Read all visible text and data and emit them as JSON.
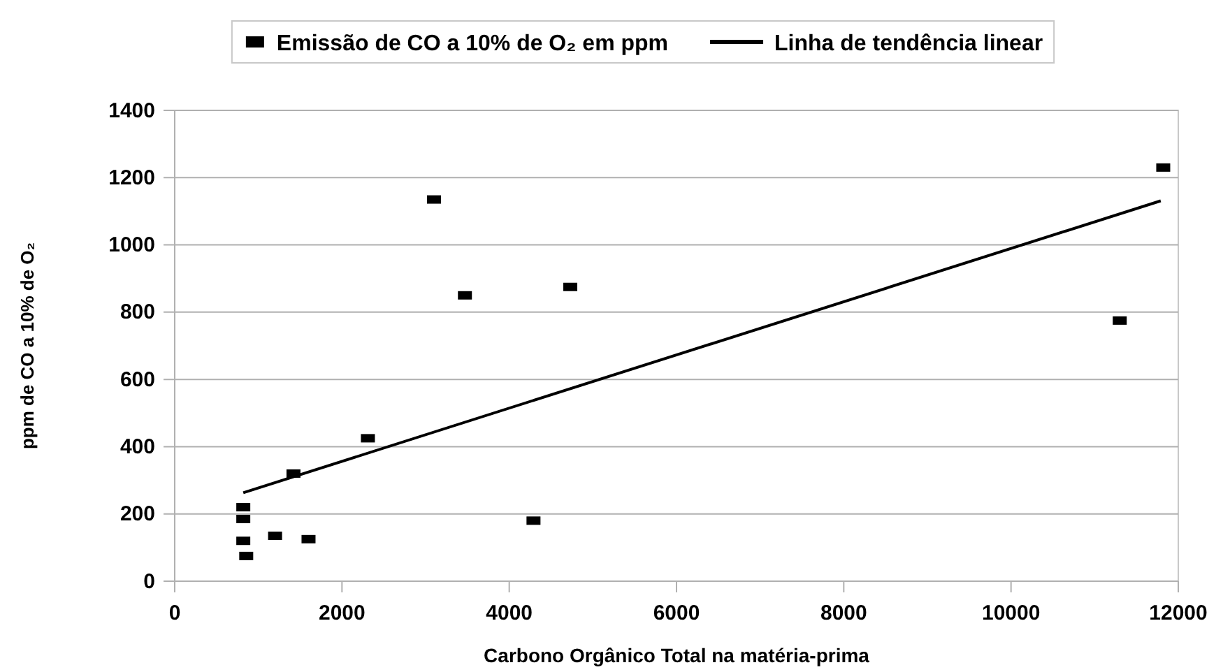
{
  "chart_data": {
    "type": "scatter",
    "xlabel": "Carbono Orgânico Total na matéria-prima",
    "ylabel": "ppm de  CO a 10% de O₂",
    "xlim": [
      0,
      12000
    ],
    "xticks": [
      0,
      2000,
      4000,
      6000,
      8000,
      10000,
      12000
    ],
    "ylim": [
      0,
      1400
    ],
    "yticks": [
      0,
      200,
      400,
      600,
      800,
      1000,
      1200,
      1400
    ],
    "grid": "y",
    "legend": "top",
    "marker": "square",
    "series": [
      {
        "name": "Emissão de CO a 10% de O₂ em ppm",
        "color": "#000000",
        "x": [
          820,
          820,
          820,
          855,
          1200,
          1600,
          1420,
          2310,
          3100,
          3470,
          4290,
          4730,
          11820,
          11300
        ],
        "values": [
          220,
          185,
          120,
          75,
          135,
          125,
          320,
          425,
          1135,
          850,
          180,
          875,
          1230,
          775
        ]
      },
      {
        "name": "Linha de tendência linear",
        "type": "line",
        "color": "#000000",
        "x": [
          820,
          11790
        ],
        "values": [
          263,
          1131
        ],
        "marker": "none",
        "line_style": "solid"
      }
    ]
  }
}
